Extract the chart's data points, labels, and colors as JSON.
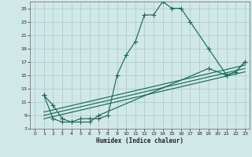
{
  "xlabel": "Humidex (Indice chaleur)",
  "bg_color": "#d0e8e8",
  "grid_color": "#b0cccc",
  "line_color": "#1a6b5a",
  "xlim": [
    -0.5,
    23.5
  ],
  "ylim": [
    7,
    26
  ],
  "xticks": [
    0,
    1,
    2,
    3,
    4,
    5,
    6,
    7,
    8,
    9,
    10,
    11,
    12,
    13,
    14,
    15,
    16,
    17,
    18,
    19,
    20,
    21,
    22,
    23
  ],
  "yticks": [
    7,
    9,
    11,
    13,
    15,
    17,
    19,
    21,
    23,
    25
  ],
  "main_x": [
    1,
    2,
    3,
    4,
    5,
    6,
    7,
    8,
    9,
    10,
    11,
    12,
    13,
    14,
    15,
    16,
    17,
    19,
    21,
    22,
    23
  ],
  "main_y": [
    12,
    10.5,
    8.5,
    8,
    8.5,
    8.5,
    8.5,
    9,
    15,
    18,
    20,
    24,
    24,
    26,
    25,
    25,
    23,
    19,
    15,
    15.5,
    17
  ],
  "lower_x": [
    1,
    2,
    3,
    4,
    5,
    6,
    7,
    19,
    21,
    22,
    23
  ],
  "lower_y": [
    12,
    8.5,
    8,
    8,
    8,
    8,
    9,
    16,
    15,
    15.5,
    17
  ],
  "line1_x": [
    1,
    23
  ],
  "line1_y": [
    9.5,
    16.5
  ],
  "line2_x": [
    1,
    23
  ],
  "line2_y": [
    9.0,
    16.0
  ],
  "line3_x": [
    1,
    23
  ],
  "line3_y": [
    8.5,
    15.5
  ]
}
